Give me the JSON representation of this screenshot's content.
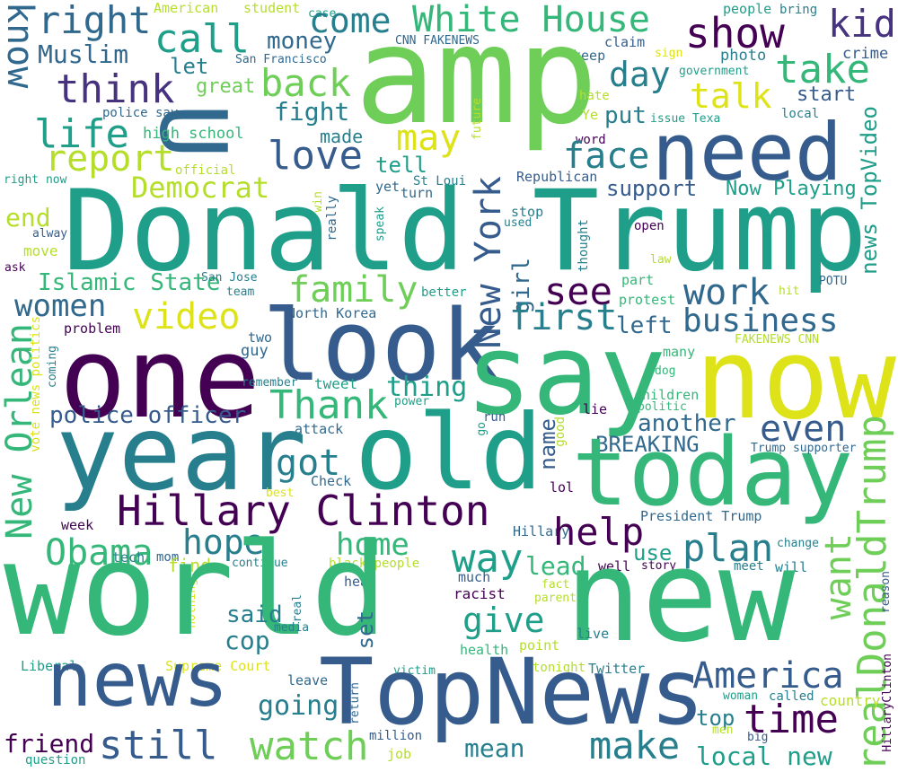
{
  "words": {
    "american": "American",
    "student": "student",
    "case": "case",
    "people": "people",
    "bring": "bring",
    "white_house": "White House",
    "kid": "kid",
    "right": "right",
    "come": "come",
    "show": "show",
    "call": "call",
    "money": "money",
    "muslim": "Muslim",
    "let": "let",
    "san_francisco": "San Francisco",
    "cnn_fakenews": "CNN FAKENEWS",
    "claim": "claim",
    "keep": "keep",
    "sign": "sign",
    "photo": "photo",
    "crime": "crime",
    "government": "government",
    "take": "take",
    "day": "day",
    "know": "know",
    "think": "think",
    "great": "great",
    "back": "back",
    "start": "start",
    "talk": "talk",
    "amp": "amp",
    "u": "U",
    "hate": "hate",
    "ye": "Ye",
    "issue_texa": "issue Texa",
    "local": "local",
    "life": "life",
    "police_say": "police say",
    "fight": "fight",
    "put": "put",
    "need": "need",
    "future": "future",
    "word": "word",
    "high_school": "high school",
    "made": "made",
    "may": "may",
    "report": "report",
    "love": "love",
    "face": "face",
    "tell": "tell",
    "official": "official",
    "st_louis": "St Loui",
    "republican": "Republican",
    "right_now": "right now",
    "democrat": "Democrat",
    "yet": "yet",
    "turn": "turn",
    "support": "support",
    "now_playing": "Now Playing",
    "news_topvideo": "news TopVideo",
    "win": "win",
    "end": "end",
    "really": "really",
    "speak": "speak",
    "stop": "stop",
    "used": "used",
    "donald_trump": "Donald Trump",
    "alway": "alway",
    "open": "open",
    "new_york": "New York",
    "move": "move",
    "thought": "thought",
    "law": "law",
    "ask": "ask",
    "part": "part",
    "islamic_state": "Islamic State",
    "family": "family",
    "san_jose": "San Jose",
    "team": "team",
    "girl": "girl",
    "see": "see",
    "work": "work",
    "better": "better",
    "protest": "protest",
    "hit": "hit",
    "potu": "POTU",
    "women": "women",
    "video": "video",
    "north_korea": "North Korea",
    "first": "first",
    "business": "business",
    "left": "left",
    "problem": "problem",
    "look": "look",
    "new_orlean": "New Orlean",
    "one": "one",
    "vote_news_politics": "vote news politics",
    "two": "two",
    "coming": "coming",
    "guy": "guy",
    "say": "say",
    "now": "now",
    "many": "many",
    "fakenews_cnn": "FAKENEWS CNN",
    "thing": "thing",
    "tweet": "tweet",
    "remember": "remember",
    "dog": "dog",
    "police_officer": "police officer",
    "thank": "Thank",
    "power": "power",
    "lie": "lie",
    "children": "children",
    "politic": "politic",
    "another": "another",
    "even": "even",
    "realdonaldtrump": "realDonaldTrump",
    "attack": "attack",
    "run": "run",
    "go": "go",
    "good": "good",
    "breaking": "BREAKING",
    "year": "year",
    "old": "old",
    "today": "today",
    "got": "got",
    "name": "name",
    "trump_supporter": "Trump supporter",
    "check": "Check",
    "hillary_clinton": "Hillary Clinton",
    "lol": "lol",
    "best": "best",
    "week": "week",
    "hillary": "Hillary",
    "president_trump": "President Trump",
    "obama": "Obama",
    "hope": "hope",
    "help": "help",
    "tech": "tech",
    "mom": "mom",
    "find": "find",
    "home": "home",
    "way": "way",
    "plan": "plan",
    "change": "change",
    "want": "want",
    "use": "use",
    "lead": "lead",
    "black_people": "black people",
    "continue": "continue",
    "story": "story",
    "meet": "meet",
    "will": "will",
    "well": "well",
    "much": "much",
    "nothing": "nothing",
    "fact": "fact",
    "head": "head",
    "world": "world",
    "new": "new",
    "said": "said",
    "give": "give",
    "racist": "racist",
    "parent": "parent",
    "reason": "reason",
    "real": "real",
    "media": "media",
    "cop": "cop",
    "set": "set",
    "point": "point",
    "live": "live",
    "health": "health",
    "liberal": "Liberal",
    "supreme_court": "Supreme Court",
    "tonight": "tonight",
    "twitter": "Twitter",
    "america": "America",
    "hillaryclinton": "HillaryClinton",
    "leave": "leave",
    "victim": "victim",
    "news": "news",
    "topnews": "TopNews",
    "going": "going",
    "woman": "woman",
    "called": "called",
    "country": "country",
    "time": "time",
    "top": "top",
    "return": "return",
    "friend": "friend",
    "still": "still",
    "watch": "watch",
    "million": "million",
    "mean": "mean",
    "make": "make",
    "men": "men",
    "big": "big",
    "local_new": "local new",
    "question": "question",
    "job": "job"
  },
  "colors": {
    "purple": "#440154",
    "indigo": "#46327e",
    "blue": "#365c8d",
    "steel": "#31688e",
    "teal": "#277f8e",
    "cyan": "#1f9e89",
    "green": "#35b779",
    "lime": "#6ece58",
    "yellowgreen": "#b5de2b",
    "yellow": "#dde318"
  }
}
